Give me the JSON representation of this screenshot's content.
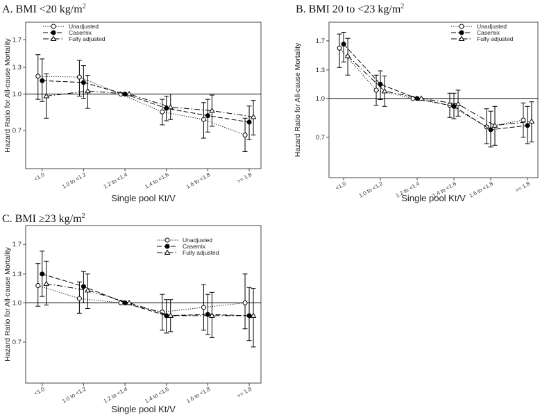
{
  "chart_data": [
    {
      "type": "line",
      "title": "A. BMI <20 kg/m",
      "title_sup": "2",
      "xlabel": "Single pool Kt/V",
      "ylabel": "Hazard Ratio for All-cause Mortality",
      "categories": [
        "<1.0",
        "1.0 to <1.2",
        "1.2 to <1.4",
        "1.4 to <1.6",
        "1.6 to <1.8",
        ">= 1.8"
      ],
      "y_ticks": [
        "0.7",
        "1.0",
        "1.3",
        "1.7"
      ],
      "reference_line": 1.0,
      "legend_position": "top-left",
      "series": [
        {
          "name": "Unadjusted",
          "marker": "open-circle",
          "line": "dotted",
          "values": [
            1.19,
            1.18,
            1.0,
            0.84,
            0.78,
            0.67
          ],
          "ci_low": [
            0.95,
            0.98,
            1.0,
            0.74,
            0.65,
            0.57
          ],
          "ci_high": [
            1.47,
            1.39,
            1.0,
            0.95,
            0.92,
            0.79
          ]
        },
        {
          "name": "Casemix",
          "marker": "filled-circle",
          "line": "dashed",
          "values": [
            1.14,
            1.12,
            1.0,
            0.87,
            0.81,
            0.76
          ],
          "ci_low": [
            0.93,
            0.96,
            1.0,
            0.77,
            0.69,
            0.64
          ],
          "ci_high": [
            1.41,
            1.32,
            1.0,
            0.98,
            0.95,
            0.89
          ]
        },
        {
          "name": "Fully adjusted",
          "marker": "open-triangle",
          "line": "dash-dot",
          "values": [
            0.98,
            1.03,
            1.0,
            0.88,
            0.85,
            0.8
          ],
          "ci_low": [
            0.79,
            0.87,
            1.0,
            0.78,
            0.73,
            0.67
          ],
          "ci_high": [
            1.22,
            1.2,
            1.0,
            1.0,
            0.99,
            0.94
          ]
        }
      ]
    },
    {
      "type": "line",
      "title": "B. BMI 20 to <23 kg/m",
      "title_sup": "2",
      "xlabel": "Single pool Kt/V",
      "ylabel": "Hazard Ratio for All-cause Mortality",
      "categories": [
        "<1.0",
        "1.0 to <1.2",
        "1.2 to <1.4",
        "1.4 to <1.6",
        "1.6 to <1.8",
        ">= 1.8"
      ],
      "y_ticks": [
        "0.7",
        "1.0",
        "1.3",
        "1.7"
      ],
      "reference_line": 1.0,
      "legend_position": "top-right",
      "series": [
        {
          "name": "Unadjusted",
          "marker": "open-circle",
          "line": "dotted",
          "values": [
            1.59,
            1.08,
            1.0,
            0.94,
            0.77,
            0.82
          ],
          "ci_low": [
            1.33,
            0.94,
            1.0,
            0.84,
            0.66,
            0.7
          ],
          "ci_high": [
            1.81,
            1.24,
            1.0,
            1.05,
            0.91,
            0.96
          ]
        },
        {
          "name": "Casemix",
          "marker": "filled-circle",
          "line": "dashed",
          "values": [
            1.65,
            1.14,
            1.0,
            0.93,
            0.75,
            0.78
          ],
          "ci_low": [
            1.4,
            0.99,
            1.0,
            0.83,
            0.64,
            0.66
          ],
          "ci_high": [
            1.84,
            1.29,
            1.0,
            1.05,
            0.89,
            0.93
          ]
        },
        {
          "name": "Fully adjusted",
          "marker": "open-triangle",
          "line": "dash-dot",
          "values": [
            1.48,
            1.07,
            1.0,
            0.95,
            0.78,
            0.81
          ],
          "ci_low": [
            1.24,
            0.93,
            1.0,
            0.85,
            0.65,
            0.67
          ],
          "ci_high": [
            1.74,
            1.23,
            1.0,
            1.08,
            0.93,
            0.97
          ]
        }
      ]
    },
    {
      "type": "line",
      "title": "C. BMI ≥23 kg/m",
      "title_sup": "2",
      "xlabel": "Single pool Kt/V",
      "ylabel": "Hazard Ratio for All-cause Mortality",
      "categories": [
        "<1.0",
        "1.0 to <1.2",
        "1.2 to <1.4",
        "1.4 to <1.6",
        "1.6 to <1.8",
        ">= 1.8"
      ],
      "y_ticks": [
        "0.7",
        "1.0",
        "1.3",
        "1.7"
      ],
      "reference_line": 1.0,
      "legend_position": "top-right",
      "series": [
        {
          "name": "Unadjusted",
          "marker": "open-circle",
          "line": "dotted",
          "values": [
            1.17,
            1.04,
            1.0,
            0.92,
            0.96,
            1.0
          ],
          "ci_low": [
            0.97,
            0.91,
            1.0,
            0.78,
            0.78,
            0.79
          ],
          "ci_high": [
            1.43,
            1.21,
            1.0,
            1.08,
            1.18,
            1.3
          ]
        },
        {
          "name": "Casemix",
          "marker": "filled-circle",
          "line": "dashed",
          "values": [
            1.3,
            1.16,
            1.0,
            0.89,
            0.9,
            0.89
          ],
          "ci_low": [
            1.06,
            1.0,
            1.0,
            0.76,
            0.75,
            0.71
          ],
          "ci_high": [
            1.6,
            1.33,
            1.0,
            1.03,
            1.08,
            1.15
          ]
        },
        {
          "name": "Fully adjusted",
          "marker": "open-triangle",
          "line": "dash-dot",
          "values": [
            1.19,
            1.12,
            1.0,
            0.89,
            0.89,
            0.89
          ],
          "ci_low": [
            0.98,
            0.95,
            1.0,
            0.77,
            0.73,
            0.67
          ],
          "ci_high": [
            1.46,
            1.3,
            1.0,
            1.03,
            1.1,
            1.14
          ]
        }
      ]
    }
  ]
}
